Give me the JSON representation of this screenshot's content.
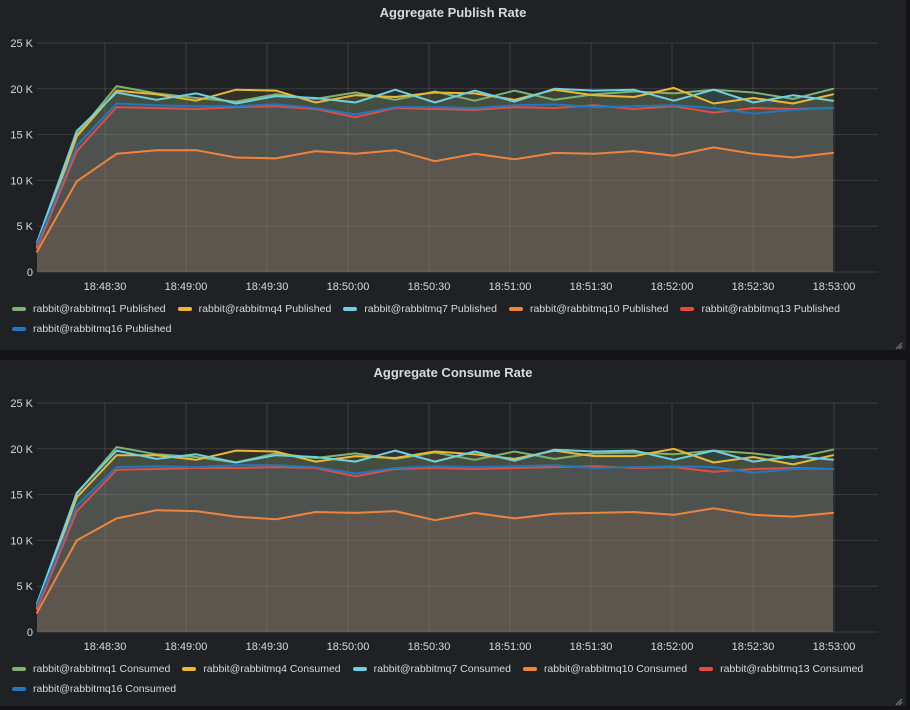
{
  "theme": {
    "page_bg": "#141416",
    "panel_bg": "#202124",
    "text": "#D8D9DA",
    "grid_line": "rgba(255,255,255,0.13)",
    "resize_handle": "#6E6E6E"
  },
  "chart_data": [
    {
      "type": "area",
      "title": "Aggregate Publish Rate",
      "xlabel": "",
      "ylabel": "",
      "ylim": [
        0,
        25000
      ],
      "grid": true,
      "legend_position": "bottom",
      "x_tick_labels": [
        "18:48:30",
        "18:49:00",
        "18:49:30",
        "18:50:00",
        "18:50:30",
        "18:51:00",
        "18:51:30",
        "18:52:00",
        "18:52:30",
        "18:53:00"
      ],
      "y_tick_labels": [
        "0",
        "5 K",
        "10 K",
        "15 K",
        "20 K",
        "25 K"
      ],
      "x_start_estimate": "18:48:05",
      "x_interval_seconds": 15,
      "series": [
        {
          "name": "rabbit@rabbitmq1 Published",
          "color": "#7EB26D",
          "values": [
            2800,
            15000,
            20300,
            19500,
            19000,
            18600,
            19400,
            18900,
            19600,
            18800,
            19700,
            18700,
            19800,
            18800,
            19400,
            19700,
            19500,
            19900,
            19600,
            18900,
            20000
          ]
        },
        {
          "name": "rabbit@rabbitmq4 Published",
          "color": "#EAB839",
          "values": [
            2700,
            14800,
            19800,
            19400,
            18700,
            19900,
            19800,
            18500,
            19300,
            19100,
            19600,
            19500,
            18800,
            19900,
            19300,
            19100,
            20100,
            18400,
            19000,
            18400,
            19400
          ]
        },
        {
          "name": "rabbit@rabbitmq7 Published",
          "color": "#6ED0E0",
          "values": [
            3200,
            15400,
            19600,
            18800,
            19500,
            18400,
            19200,
            19000,
            18500,
            19900,
            18500,
            19800,
            18600,
            20000,
            19800,
            19900,
            18700,
            19900,
            18500,
            19300,
            18700
          ]
        },
        {
          "name": "rabbit@rabbitmq10 Published",
          "color": "#EF843C",
          "values": [
            2200,
            9900,
            12900,
            13300,
            13300,
            12500,
            12400,
            13200,
            12900,
            13300,
            12100,
            12900,
            12300,
            13000,
            12900,
            13200,
            12700,
            13600,
            12900,
            12500,
            13000
          ]
        },
        {
          "name": "rabbit@rabbitmq13 Published",
          "color": "#E24D42",
          "values": [
            2600,
            13200,
            18000,
            17900,
            17800,
            18000,
            18100,
            17800,
            16900,
            17900,
            17800,
            17700,
            18000,
            17900,
            18200,
            17800,
            18100,
            17400,
            17900,
            17800,
            17900
          ]
        },
        {
          "name": "rabbit@rabbitmq16 Published",
          "color": "#1F78C1",
          "values": [
            3000,
            13800,
            18400,
            18200,
            18100,
            18100,
            18300,
            17900,
            17200,
            18000,
            18000,
            17900,
            18200,
            18300,
            18000,
            18100,
            18200,
            17900,
            17300,
            17700,
            17900
          ]
        }
      ]
    },
    {
      "type": "area",
      "title": "Aggregate Consume Rate",
      "xlabel": "",
      "ylabel": "",
      "ylim": [
        0,
        25000
      ],
      "grid": true,
      "legend_position": "bottom",
      "x_tick_labels": [
        "18:48:30",
        "18:49:00",
        "18:49:30",
        "18:50:00",
        "18:50:30",
        "18:51:00",
        "18:51:30",
        "18:52:00",
        "18:52:30",
        "18:53:00"
      ],
      "y_tick_labels": [
        "0",
        "5 K",
        "10 K",
        "15 K",
        "20 K",
        "25 K"
      ],
      "x_start_estimate": "18:48:05",
      "x_interval_seconds": 15,
      "series": [
        {
          "name": "rabbit@rabbitmq1 Consumed",
          "color": "#7EB26D",
          "values": [
            2900,
            15100,
            20200,
            19400,
            19100,
            18500,
            19500,
            19000,
            19500,
            18900,
            19600,
            18800,
            19700,
            18900,
            19500,
            19600,
            19400,
            19800,
            19500,
            19000,
            19900
          ]
        },
        {
          "name": "rabbit@rabbitmq4 Consumed",
          "color": "#EAB839",
          "values": [
            2600,
            14700,
            19300,
            19300,
            18800,
            19800,
            19700,
            18600,
            19200,
            19000,
            19700,
            19400,
            18900,
            19800,
            19200,
            19200,
            20000,
            18500,
            19100,
            18300,
            19300
          ]
        },
        {
          "name": "rabbit@rabbitmq7 Consumed",
          "color": "#6ED0E0",
          "values": [
            3100,
            15200,
            19800,
            18900,
            19400,
            18500,
            19300,
            19100,
            18600,
            19800,
            18600,
            19700,
            18700,
            19900,
            19700,
            19800,
            18800,
            19800,
            18600,
            19200,
            18800
          ]
        },
        {
          "name": "rabbit@rabbitmq10 Consumed",
          "color": "#EF843C",
          "values": [
            2100,
            10000,
            12400,
            13300,
            13200,
            12600,
            12300,
            13100,
            13000,
            13200,
            12200,
            13000,
            12400,
            12900,
            13000,
            13100,
            12800,
            13500,
            12800,
            12600,
            13000
          ]
        },
        {
          "name": "rabbit@rabbitmq13 Consumed",
          "color": "#E24D42",
          "values": [
            2500,
            13200,
            17700,
            17800,
            17900,
            17900,
            18000,
            17900,
            17000,
            17800,
            17900,
            17800,
            17900,
            18000,
            18100,
            17900,
            18000,
            17500,
            17800,
            17900,
            17800
          ]
        },
        {
          "name": "rabbit@rabbitmq16 Consumed",
          "color": "#1F78C1",
          "values": [
            2900,
            13800,
            18000,
            18100,
            18000,
            18200,
            18200,
            18000,
            17300,
            17900,
            18100,
            18000,
            18100,
            18200,
            17900,
            18000,
            18100,
            18000,
            17400,
            17800,
            17800
          ]
        }
      ]
    }
  ]
}
